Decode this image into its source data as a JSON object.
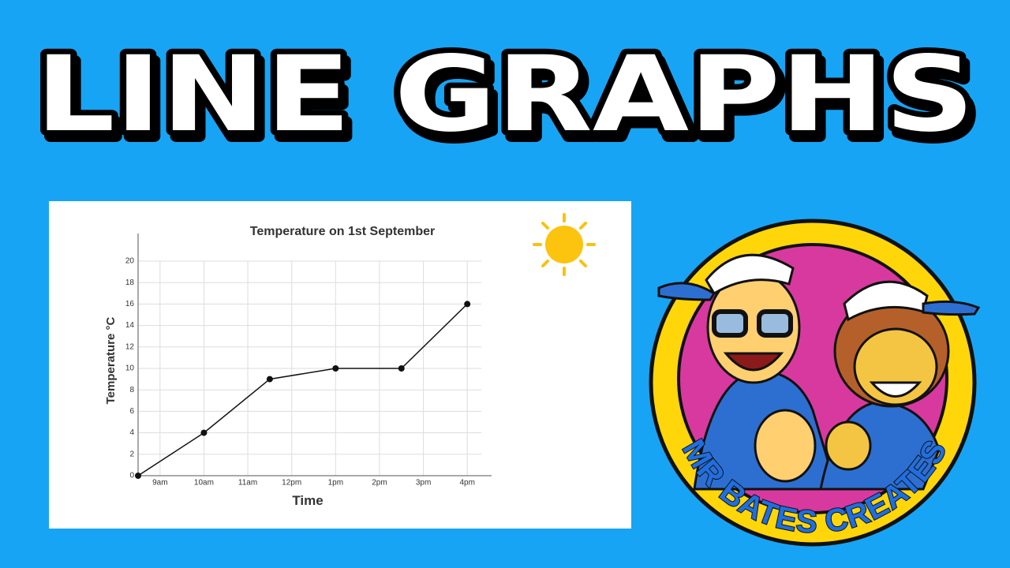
{
  "header": {
    "title": "LINE GRAPHS"
  },
  "chart_data": {
    "type": "line",
    "title": "Temperature on 1st September",
    "x_label": "Time",
    "y_label": "Temperature °C",
    "x": [
      8.5,
      10,
      11.5,
      13,
      14.5,
      16
    ],
    "values": [
      0,
      4,
      9,
      10,
      10,
      16
    ],
    "color": "#111111",
    "xlim": [
      8.5,
      16.5
    ],
    "xticks": [
      {
        "value": 9,
        "label": "9am"
      },
      {
        "value": 10,
        "label": "10am"
      },
      {
        "value": 11,
        "label": "11am"
      },
      {
        "value": 12,
        "label": "12pm"
      },
      {
        "value": 13,
        "label": "1pm"
      },
      {
        "value": 14,
        "label": "2pm"
      },
      {
        "value": 15,
        "label": "3pm"
      },
      {
        "value": 16,
        "label": "4pm"
      }
    ],
    "ylim": [
      0,
      20
    ],
    "yticks": [
      0,
      2,
      4,
      6,
      8,
      10,
      12,
      14,
      16,
      18,
      20
    ],
    "grid": true
  },
  "logo": {
    "text": "MR BATES CREATES"
  }
}
